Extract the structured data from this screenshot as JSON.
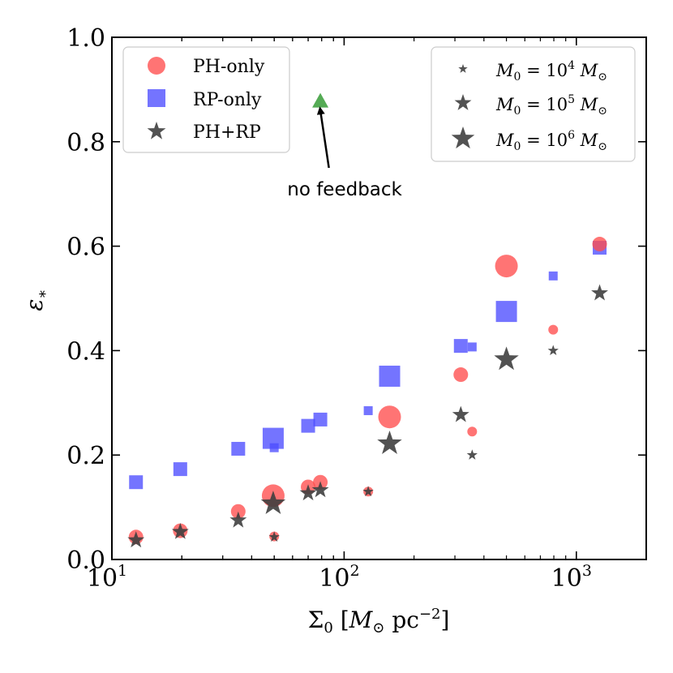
{
  "chart_data": {
    "type": "scatter",
    "x_scale": "log",
    "xlim": [
      10,
      2000
    ],
    "ylim": [
      0.0,
      1.0
    ],
    "xlabel": "Σ₀ [M⊙ pc⁻²]",
    "ylabel": "ε∗",
    "x_ticks": [
      {
        "value": 10,
        "base": "10",
        "exp": "1"
      },
      {
        "value": 100,
        "base": "10",
        "exp": "2"
      },
      {
        "value": 1000,
        "base": "10",
        "exp": "3"
      }
    ],
    "y_ticks": [
      {
        "value": 0.0,
        "label": "0.0"
      },
      {
        "value": 0.2,
        "label": "0.2"
      },
      {
        "value": 0.4,
        "label": "0.4"
      },
      {
        "value": 0.6,
        "label": "0.6"
      },
      {
        "value": 0.8,
        "label": "0.8"
      },
      {
        "value": 1.0,
        "label": "1.0"
      }
    ],
    "mass_legend": [
      {
        "mass": "4",
        "label_prefix": "M",
        "label_sub": "0",
        "label_mid": " = 10",
        "label_unit": " M",
        "label_unit_sub": "⊙"
      },
      {
        "mass": "5",
        "label_prefix": "M",
        "label_sub": "0",
        "label_mid": " = 10",
        "label_unit": " M",
        "label_unit_sub": "⊙"
      },
      {
        "mass": "6",
        "label_prefix": "M",
        "label_sub": "0",
        "label_mid": " = 10",
        "label_unit": " M",
        "label_unit_sub": "⊙"
      }
    ],
    "series": [
      {
        "name": "PH-only",
        "marker": "circle",
        "color": "#ff4d4d",
        "points": [
          {
            "x": 12.7,
            "y": 0.043,
            "mass": 5
          },
          {
            "x": 19.7,
            "y": 0.055,
            "mass": 5
          },
          {
            "x": 35.0,
            "y": 0.092,
            "mass": 5
          },
          {
            "x": 49.5,
            "y": 0.122,
            "mass": 6
          },
          {
            "x": 50.0,
            "y": 0.044,
            "mass": 4
          },
          {
            "x": 70.0,
            "y": 0.139,
            "mass": 5
          },
          {
            "x": 79.0,
            "y": 0.148,
            "mass": 5
          },
          {
            "x": 127.0,
            "y": 0.13,
            "mass": 4
          },
          {
            "x": 157.0,
            "y": 0.273,
            "mass": 6
          },
          {
            "x": 318.0,
            "y": 0.354,
            "mass": 5
          },
          {
            "x": 356.0,
            "y": 0.245,
            "mass": 4
          },
          {
            "x": 500.0,
            "y": 0.562,
            "mass": 6
          },
          {
            "x": 795.0,
            "y": 0.44,
            "mass": 4
          },
          {
            "x": 1260.0,
            "y": 0.604,
            "mass": 5
          }
        ]
      },
      {
        "name": "RP-only",
        "marker": "square",
        "color": "#4d4dff",
        "points": [
          {
            "x": 12.7,
            "y": 0.148,
            "mass": 5
          },
          {
            "x": 19.7,
            "y": 0.173,
            "mass": 5
          },
          {
            "x": 35.0,
            "y": 0.212,
            "mass": 5
          },
          {
            "x": 49.5,
            "y": 0.232,
            "mass": 6
          },
          {
            "x": 50.0,
            "y": 0.214,
            "mass": 4
          },
          {
            "x": 70.0,
            "y": 0.256,
            "mass": 5
          },
          {
            "x": 79.0,
            "y": 0.268,
            "mass": 5
          },
          {
            "x": 127.0,
            "y": 0.285,
            "mass": 4
          },
          {
            "x": 157.0,
            "y": 0.351,
            "mass": 6
          },
          {
            "x": 318.0,
            "y": 0.409,
            "mass": 5
          },
          {
            "x": 356.0,
            "y": 0.407,
            "mass": 4
          },
          {
            "x": 500.0,
            "y": 0.475,
            "mass": 6
          },
          {
            "x": 795.0,
            "y": 0.543,
            "mass": 4
          },
          {
            "x": 1260.0,
            "y": 0.597,
            "mass": 5
          }
        ]
      },
      {
        "name": "PH+RP",
        "marker": "star",
        "color": "#3f3f3f",
        "points": [
          {
            "x": 12.7,
            "y": 0.037,
            "mass": 5
          },
          {
            "x": 19.7,
            "y": 0.053,
            "mass": 5
          },
          {
            "x": 35.0,
            "y": 0.075,
            "mass": 5
          },
          {
            "x": 49.5,
            "y": 0.107,
            "mass": 6
          },
          {
            "x": 50.0,
            "y": 0.043,
            "mass": 4
          },
          {
            "x": 70.0,
            "y": 0.127,
            "mass": 5
          },
          {
            "x": 79.0,
            "y": 0.133,
            "mass": 5
          },
          {
            "x": 127.0,
            "y": 0.13,
            "mass": 4
          },
          {
            "x": 157.0,
            "y": 0.222,
            "mass": 6
          },
          {
            "x": 318.0,
            "y": 0.277,
            "mass": 5
          },
          {
            "x": 356.0,
            "y": 0.2,
            "mass": 4
          },
          {
            "x": 500.0,
            "y": 0.383,
            "mass": 6
          },
          {
            "x": 795.0,
            "y": 0.4,
            "mass": 4
          },
          {
            "x": 1260.0,
            "y": 0.51,
            "mass": 5
          }
        ]
      }
    ],
    "no_feedback_point": {
      "x": 79.0,
      "y": 0.878,
      "marker": "triangle",
      "color": "#4ca64c"
    },
    "annotation": {
      "text": "no feedback",
      "x": 79.0,
      "y": 0.71,
      "arrow_to": [
        79.0,
        0.86
      ],
      "arrow_from": [
        86.0,
        0.75
      ]
    }
  }
}
